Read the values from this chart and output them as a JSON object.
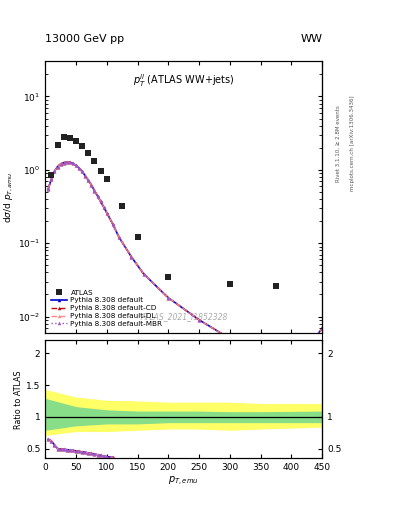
{
  "title_left": "13000 GeV pp",
  "title_right": "WW",
  "plot_label": "$p_T^{ll}$ (ATLAS WW+jets)",
  "watermark": "ATLAS_2021_I1852328",
  "right_label_top": "Rivet 3.1.10, ≥ 2.8M events",
  "right_label_bottom": "mcplots.cern.ch [arXiv:1306.3436]",
  "xlabel": "$p_{T,emu}$",
  "ylabel_main": "dσ/d $p_{T,amu}$",
  "ylabel_ratio": "Ratio to ATLAS",
  "atlas_x": [
    10,
    20,
    30,
    40,
    50,
    60,
    70,
    80,
    90,
    100,
    125,
    150,
    200,
    300,
    375
  ],
  "atlas_y": [
    0.85,
    2.2,
    2.8,
    2.7,
    2.5,
    2.1,
    1.7,
    1.3,
    0.95,
    0.75,
    0.32,
    0.12,
    0.035,
    0.028,
    0.026
  ],
  "pythia_x": [
    5,
    10,
    15,
    20,
    25,
    30,
    35,
    40,
    45,
    50,
    55,
    60,
    65,
    70,
    75,
    80,
    85,
    90,
    95,
    100,
    110,
    120,
    140,
    160,
    200,
    250,
    300,
    350,
    400,
    450
  ],
  "pythia_y": [
    0.55,
    0.75,
    0.95,
    1.1,
    1.2,
    1.25,
    1.28,
    1.27,
    1.22,
    1.15,
    1.05,
    0.95,
    0.83,
    0.72,
    0.62,
    0.52,
    0.44,
    0.37,
    0.31,
    0.26,
    0.18,
    0.12,
    0.065,
    0.038,
    0.018,
    0.009,
    0.005,
    0.003,
    0.0018,
    0.007
  ],
  "ratio_pythia_x": [
    5,
    10,
    15,
    20,
    25,
    30,
    35,
    40,
    45,
    50,
    55,
    60,
    65,
    70,
    75,
    80,
    85,
    90,
    95,
    100,
    110
  ],
  "ratio_pythia_y": [
    0.65,
    0.62,
    0.56,
    0.5,
    0.495,
    0.49,
    0.485,
    0.478,
    0.472,
    0.465,
    0.458,
    0.45,
    0.442,
    0.435,
    0.425,
    0.415,
    0.405,
    0.395,
    0.385,
    0.375,
    0.365
  ],
  "xlim": [
    0,
    450
  ],
  "ylim_main": [
    0.006,
    30
  ],
  "ylim_ratio": [
    0.35,
    2.2
  ],
  "color_atlas": "#222222",
  "color_pythia_default": "#0000cc",
  "color_pythia_cd": "#cc0000",
  "color_pythia_dl": "#ff8888",
  "color_pythia_mbr": "#9955cc",
  "band_x": [
    0,
    50,
    100,
    150,
    200,
    250,
    300,
    350,
    450
  ],
  "band_y_lo": [
    0.72,
    0.78,
    0.78,
    0.8,
    0.82,
    0.82,
    0.8,
    0.82,
    0.85
  ],
  "band_y_hi": [
    1.42,
    1.3,
    1.25,
    1.24,
    1.22,
    1.22,
    1.22,
    1.2,
    1.2
  ],
  "green_y_lo": [
    0.8,
    0.87,
    0.9,
    0.9,
    0.92,
    0.92,
    0.92,
    0.92,
    0.92
  ],
  "green_y_hi": [
    1.28,
    1.15,
    1.1,
    1.08,
    1.08,
    1.08,
    1.07,
    1.07,
    1.08
  ]
}
